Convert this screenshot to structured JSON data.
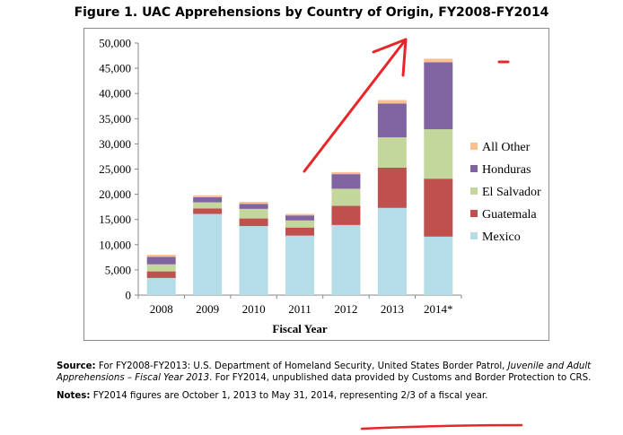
{
  "chart_data": {
    "type": "bar",
    "stacked": true,
    "title": "Figure 1. UAC Apprehensions by Country of Origin, FY2008-FY2014",
    "xlabel": "Fiscal Year",
    "ylabel": "",
    "ylim": [
      0,
      50000
    ],
    "yticks": [
      "50,000",
      "45,000",
      "40,000",
      "35,000",
      "30,000",
      "25,000",
      "20,000",
      "15,000",
      "10,000",
      "5,000",
      "0"
    ],
    "ytick_values": [
      50000,
      45000,
      40000,
      35000,
      30000,
      25000,
      20000,
      15000,
      10000,
      5000,
      0
    ],
    "categories": [
      "2008",
      "2009",
      "2010",
      "2011",
      "2012",
      "2013",
      "2014*"
    ],
    "legend_position": "right",
    "grid": false,
    "series": [
      {
        "name": "Mexico",
        "color": "#b4dde8",
        "values": [
          3400,
          16100,
          13700,
          11800,
          13900,
          17300,
          11600
        ]
      },
      {
        "name": "Guatemala",
        "color": "#c0504d",
        "values": [
          1300,
          1100,
          1500,
          1600,
          3800,
          8000,
          11500
        ]
      },
      {
        "name": "El Salvador",
        "color": "#c3d69b",
        "values": [
          1400,
          1200,
          1900,
          1400,
          3400,
          6000,
          9800
        ]
      },
      {
        "name": "Honduras",
        "color": "#8064a2",
        "values": [
          1500,
          1000,
          1000,
          1000,
          2900,
          6700,
          13300
        ]
      },
      {
        "name": "All Other",
        "color": "#fac090",
        "values": [
          400,
          400,
          400,
          300,
          400,
          700,
          700
        ]
      }
    ]
  },
  "footer": {
    "source_label": "Source:",
    "source_text_1": " For FY2008-FY2013: U.S. Department of Homeland Security, United States Border Patrol, ",
    "source_italic": "Juvenile and Adult Apprehensions – Fiscal Year 2013",
    "source_text_2": ". For FY2014, unpublished data provided by Customs and Border Protection to CRS.",
    "notes_label": "Notes:",
    "notes_text_1": " FY2014 figures are October 1, 2013 to May 31, 2014, ",
    "notes_highlight": "representing 2/3 of a fiscal year."
  }
}
